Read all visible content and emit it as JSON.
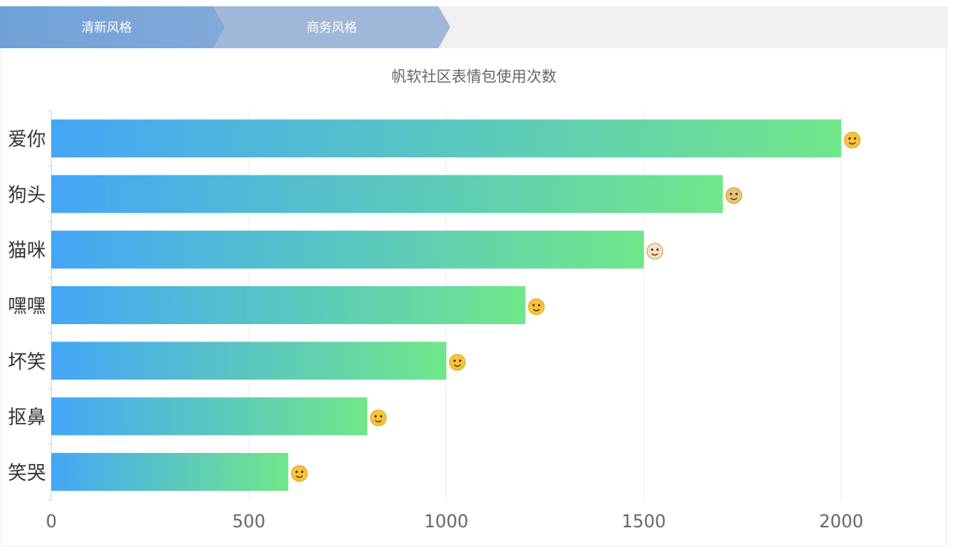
{
  "tabs": [
    {
      "label": "清新风格",
      "active": true
    },
    {
      "label": "商务风格",
      "active": false
    }
  ],
  "colors": {
    "bar_gradient_start": "#44a6f6",
    "bar_gradient_end": "#70e78a",
    "tab_active": "#7ba6d9",
    "tab_inactive": "#9fb8d9"
  },
  "chart_data": {
    "type": "bar",
    "orientation": "horizontal",
    "title": "帆软社区表情包使用次数",
    "categories": [
      "爱你",
      "狗头",
      "猫咪",
      "嘿嘿",
      "坏笑",
      "抠鼻",
      "笑哭"
    ],
    "values": [
      2000,
      1700,
      1500,
      1200,
      1000,
      800,
      600
    ],
    "icons": [
      "kiss-emoji-icon",
      "doge-emoji-icon",
      "cat-emoji-icon",
      "smile-emoji-icon",
      "grin-emoji-icon",
      "pick-nose-emoji-icon",
      "laugh-cry-emoji-icon"
    ],
    "xlim": [
      0,
      2200
    ],
    "xticks": [
      0,
      500,
      1000,
      1500,
      2000
    ],
    "grid": true,
    "legend": "none"
  }
}
